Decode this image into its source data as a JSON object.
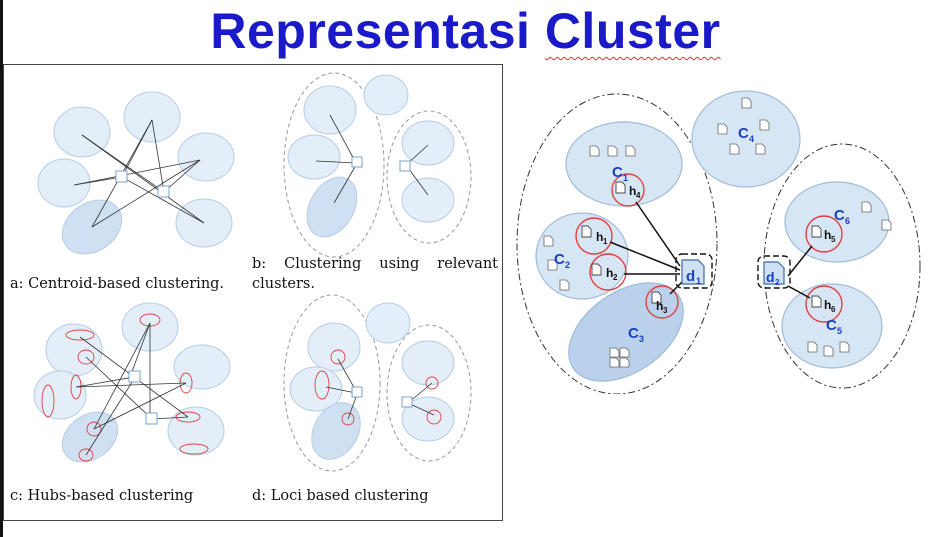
{
  "title": {
    "prefix": "Representasi ",
    "underlined": "Cluster"
  },
  "captions": {
    "a": "a: Centroid-based clustering.",
    "b_line1": "b:  Clustering  using  relevant",
    "b_line2": "clusters.",
    "c": "c: Hubs-based clustering",
    "d": "d: Loci based clustering"
  },
  "right": {
    "labels": {
      "c1": "C",
      "c1s": "1",
      "c2": "C",
      "c2s": "2",
      "c3": "C",
      "c3s": "3",
      "c4": "C",
      "c4s": "4",
      "c5": "C",
      "c5s": "5",
      "c6": "C",
      "c6s": "6",
      "h1": "h",
      "h1s": "1",
      "h2": "h",
      "h2s": "2",
      "h3": "h",
      "h3s": "3",
      "h4": "h",
      "h4s": "4",
      "h5": "h",
      "h5s": "5",
      "h6": "h",
      "h6s": "6",
      "d1": "d",
      "d1s": "1",
      "d2": "d",
      "d2s": "2"
    }
  },
  "colors": {
    "title": "#1a1ac8",
    "cluster_fill": "#d7e6f4",
    "cluster_stroke": "#9fbcd9",
    "hub_circle": "#e04040",
    "label": "#1a3fbf"
  }
}
